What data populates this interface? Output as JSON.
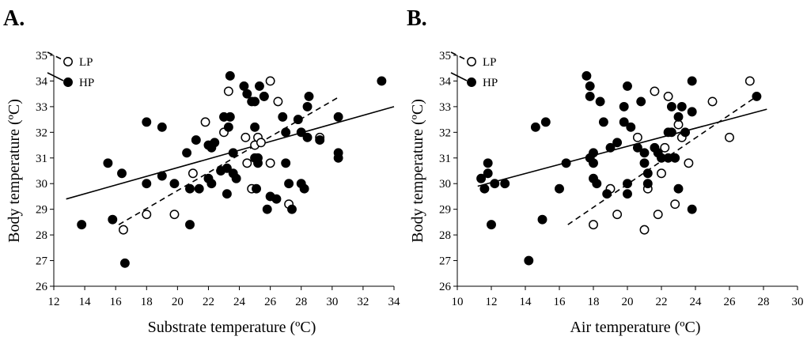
{
  "chart_data": [
    {
      "id": "A",
      "type": "scatter",
      "panel_label": "A.",
      "title": "",
      "xlabel": "Substrate temperature (ºC)",
      "ylabel": "Body temperature (ºC)",
      "xlim": [
        12,
        34
      ],
      "ylim": [
        26,
        35
      ],
      "xticks": [
        12,
        14,
        16,
        18,
        20,
        22,
        24,
        26,
        28,
        30,
        32,
        34
      ],
      "yticks": [
        26,
        27,
        28,
        29,
        30,
        31,
        32,
        33,
        34,
        35
      ],
      "legend": {
        "placement": "top-left",
        "entries": [
          "LP",
          "HP"
        ]
      },
      "series": [
        {
          "name": "LP",
          "marker": "open-circle",
          "points": [
            [
              16.5,
              28.2
            ],
            [
              18,
              28.8
            ],
            [
              19.8,
              28.8
            ],
            [
              21,
              30.4
            ],
            [
              21.8,
              32.4
            ],
            [
              23,
              32
            ],
            [
              23.3,
              33.6
            ],
            [
              24.4,
              31.8
            ],
            [
              24.5,
              30.8
            ],
            [
              24.8,
              29.8
            ],
            [
              25,
              31.5
            ],
            [
              25.2,
              31.8
            ],
            [
              25.4,
              31.6
            ],
            [
              25.6,
              33.4
            ],
            [
              26,
              30.8
            ],
            [
              26,
              34
            ],
            [
              26.5,
              33.2
            ],
            [
              27.2,
              29.2
            ],
            [
              29.2,
              31.8
            ]
          ]
        },
        {
          "name": "HP",
          "marker": "filled-circle",
          "points": [
            [
              13.8,
              28.4
            ],
            [
              15.5,
              30.8
            ],
            [
              15.8,
              28.6
            ],
            [
              16.4,
              30.4
            ],
            [
              16.6,
              26.9
            ],
            [
              18,
              30
            ],
            [
              18,
              32.4
            ],
            [
              19,
              32.2
            ],
            [
              19,
              30.3
            ],
            [
              19.8,
              30
            ],
            [
              20.6,
              31.2
            ],
            [
              20.8,
              28.4
            ],
            [
              20.8,
              29.8
            ],
            [
              21.2,
              31.7
            ],
            [
              21.4,
              29.8
            ],
            [
              22,
              30.2
            ],
            [
              22,
              31.5
            ],
            [
              22.2,
              31.4
            ],
            [
              22.2,
              30
            ],
            [
              22.4,
              31.6
            ],
            [
              22.8,
              30.5
            ],
            [
              23,
              32.6
            ],
            [
              23.2,
              30.6
            ],
            [
              23.2,
              29.6
            ],
            [
              23.3,
              32.2
            ],
            [
              23.4,
              34.2
            ],
            [
              23.4,
              32.6
            ],
            [
              23.6,
              30.4
            ],
            [
              23.6,
              31.2
            ],
            [
              23.8,
              30.2
            ],
            [
              24.3,
              33.8
            ],
            [
              24.5,
              33.5
            ],
            [
              24.8,
              33.2
            ],
            [
              25,
              33.2
            ],
            [
              25,
              32.2
            ],
            [
              25,
              31
            ],
            [
              25.1,
              29.8
            ],
            [
              25.2,
              30.8
            ],
            [
              25.2,
              31
            ],
            [
              25.3,
              33.8
            ],
            [
              25.6,
              33.4
            ],
            [
              25.8,
              29
            ],
            [
              26,
              29.5
            ],
            [
              26.4,
              29.4
            ],
            [
              26.8,
              32.6
            ],
            [
              27,
              32
            ],
            [
              27,
              30.8
            ],
            [
              27.2,
              30
            ],
            [
              27.4,
              29
            ],
            [
              27.8,
              32.5
            ],
            [
              28,
              32
            ],
            [
              28,
              30
            ],
            [
              28.2,
              29.8
            ],
            [
              28.4,
              31.8
            ],
            [
              28.4,
              33
            ],
            [
              28.5,
              33.4
            ],
            [
              29.2,
              31.7
            ],
            [
              30.4,
              32.6
            ],
            [
              30.4,
              31.2
            ],
            [
              30.4,
              31
            ],
            [
              33.2,
              34
            ]
          ]
        }
      ],
      "fits": [
        {
          "series": "HP",
          "style": "solid",
          "x": [
            12.8,
            34
          ],
          "y": [
            29.4,
            33
          ]
        },
        {
          "series": "LP",
          "style": "dashed",
          "x": [
            16.2,
            30.5
          ],
          "y": [
            28.4,
            33.4
          ]
        }
      ]
    },
    {
      "id": "B",
      "type": "scatter",
      "panel_label": "B.",
      "title": "",
      "xlabel": "Air temperature (ºC)",
      "ylabel": "Body temperature (ºC)",
      "xlim": [
        10,
        30
      ],
      "ylim": [
        26,
        35
      ],
      "xticks": [
        10,
        12,
        14,
        16,
        18,
        20,
        22,
        24,
        26,
        28,
        30
      ],
      "yticks": [
        26,
        27,
        28,
        29,
        30,
        31,
        32,
        33,
        34,
        35
      ],
      "legend": {
        "placement": "top-left",
        "entries": [
          "LP",
          "HP"
        ]
      },
      "series": [
        {
          "name": "LP",
          "marker": "open-circle",
          "points": [
            [
              18,
              28.4
            ],
            [
              19,
              29.8
            ],
            [
              19.4,
              28.8
            ],
            [
              20.6,
              31.8
            ],
            [
              21,
              28.2
            ],
            [
              21.2,
              29.8
            ],
            [
              21.6,
              33.6
            ],
            [
              21.8,
              28.8
            ],
            [
              22,
              30.4
            ],
            [
              22.2,
              31.4
            ],
            [
              22.4,
              33.4
            ],
            [
              22.8,
              29.2
            ],
            [
              23,
              32.3
            ],
            [
              23.2,
              31.8
            ],
            [
              23.6,
              30.8
            ],
            [
              25,
              33.2
            ],
            [
              26,
              31.8
            ],
            [
              27.2,
              34
            ]
          ]
        },
        {
          "name": "HP",
          "marker": "filled-circle",
          "points": [
            [
              11.4,
              30.2
            ],
            [
              11.6,
              29.8
            ],
            [
              11.8,
              30.8
            ],
            [
              11.8,
              30.4
            ],
            [
              12,
              28.4
            ],
            [
              12.2,
              30
            ],
            [
              12.8,
              30
            ],
            [
              14.2,
              27
            ],
            [
              14.6,
              32.2
            ],
            [
              15,
              28.6
            ],
            [
              15.2,
              32.4
            ],
            [
              16,
              29.8
            ],
            [
              16.4,
              30.8
            ],
            [
              17.6,
              34.2
            ],
            [
              17.8,
              33.8
            ],
            [
              17.8,
              33.4
            ],
            [
              17.8,
              31
            ],
            [
              18,
              31.2
            ],
            [
              18,
              30.8
            ],
            [
              18,
              30.2
            ],
            [
              18.2,
              30
            ],
            [
              18.4,
              33.2
            ],
            [
              18.6,
              32.4
            ],
            [
              18.8,
              29.6
            ],
            [
              19,
              31.4
            ],
            [
              19.4,
              31.6
            ],
            [
              19.8,
              33
            ],
            [
              19.8,
              32.4
            ],
            [
              20,
              33.8
            ],
            [
              20,
              30
            ],
            [
              20,
              29.6
            ],
            [
              20.2,
              32.2
            ],
            [
              20.6,
              31.4
            ],
            [
              20.8,
              33.2
            ],
            [
              21,
              31.2
            ],
            [
              21,
              30.8
            ],
            [
              21.2,
              30.4
            ],
            [
              21.2,
              30
            ],
            [
              21.6,
              31.4
            ],
            [
              21.8,
              31.2
            ],
            [
              22,
              31
            ],
            [
              22.4,
              32
            ],
            [
              22.4,
              31
            ],
            [
              22.6,
              32
            ],
            [
              22.6,
              33
            ],
            [
              22.8,
              31
            ],
            [
              23,
              29.8
            ],
            [
              23,
              32.6
            ],
            [
              23.2,
              33
            ],
            [
              23.4,
              32
            ],
            [
              23.8,
              34
            ],
            [
              23.8,
              32.8
            ],
            [
              23.8,
              29
            ],
            [
              27.6,
              33.4
            ]
          ]
        }
      ],
      "fits": [
        {
          "series": "HP",
          "style": "solid",
          "x": [
            11.2,
            28.2
          ],
          "y": [
            29.9,
            32.9
          ]
        },
        {
          "series": "LP",
          "style": "dashed",
          "x": [
            16.5,
            27.6
          ],
          "y": [
            28.4,
            33.4
          ]
        }
      ]
    }
  ]
}
